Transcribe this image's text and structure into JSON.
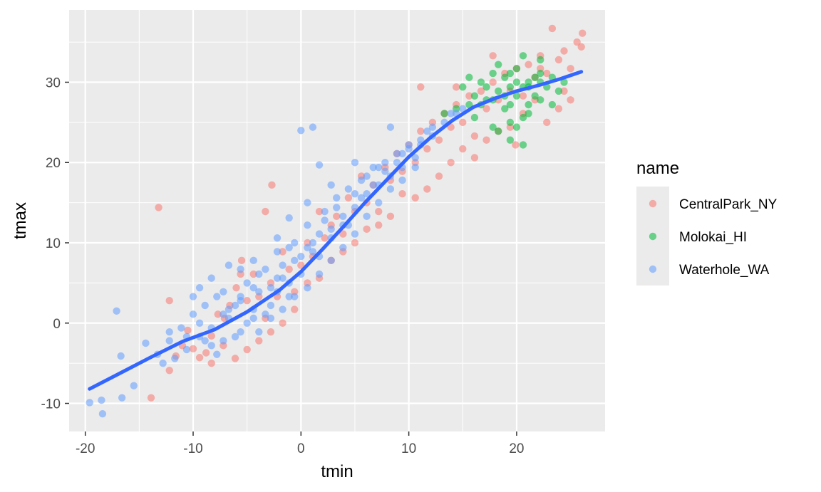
{
  "chart_data": {
    "type": "scatter",
    "title": "",
    "xlabel": "tmin",
    "ylabel": "tmax",
    "xlim": [
      -21.5,
      28.2
    ],
    "ylim": [
      -13.5,
      39
    ],
    "x_ticks": [
      -20,
      -10,
      0,
      10,
      20
    ],
    "y_ticks": [
      -10,
      0,
      10,
      20,
      30
    ],
    "grid": true,
    "legend": {
      "title": "name",
      "position": "right"
    },
    "series": [
      {
        "name": "CentralPark_NY",
        "color": "#F8766D",
        "points": [
          [
            -13.2,
            14.4
          ],
          [
            -12.2,
            2.8
          ],
          [
            -13.9,
            -9.3
          ],
          [
            -12.2,
            -5.9
          ],
          [
            -11.6,
            -4.1
          ],
          [
            -11.0,
            -2.8
          ],
          [
            -10.5,
            -0.9
          ],
          [
            -10.0,
            -3.2
          ],
          [
            -9.4,
            -4.3
          ],
          [
            -8.8,
            -3.7
          ],
          [
            -8.3,
            -1.6
          ],
          [
            -7.7,
            1.1
          ],
          [
            -7.1,
            0.6
          ],
          [
            -6.6,
            2.2
          ],
          [
            -6.0,
            4.4
          ],
          [
            -5.5,
            7.8
          ],
          [
            -5.0,
            2.8
          ],
          [
            -4.4,
            6.1
          ],
          [
            -3.9,
            3.3
          ],
          [
            -3.3,
            0.6
          ],
          [
            -2.8,
            5.0
          ],
          [
            -2.2,
            3.3
          ],
          [
            -1.7,
            8.9
          ],
          [
            -1.1,
            6.7
          ],
          [
            -0.6,
            3.9
          ],
          [
            0.0,
            7.2
          ],
          [
            0.6,
            10.0
          ],
          [
            1.1,
            8.3
          ],
          [
            1.7,
            13.9
          ],
          [
            2.2,
            10.6
          ],
          [
            2.8,
            12.2
          ],
          [
            3.3,
            13.3
          ],
          [
            3.9,
            11.1
          ],
          [
            4.4,
            15.6
          ],
          [
            5.0,
            13.9
          ],
          [
            5.6,
            18.3
          ],
          [
            6.1,
            15.0
          ],
          [
            6.7,
            17.2
          ],
          [
            7.2,
            13.9
          ],
          [
            7.8,
            19.4
          ],
          [
            8.3,
            17.8
          ],
          [
            8.9,
            21.1
          ],
          [
            9.4,
            18.9
          ],
          [
            10.0,
            22.2
          ],
          [
            10.6,
            20.0
          ],
          [
            11.1,
            23.9
          ],
          [
            11.7,
            21.7
          ],
          [
            12.2,
            25.0
          ],
          [
            12.8,
            22.8
          ],
          [
            13.3,
            26.1
          ],
          [
            13.9,
            24.4
          ],
          [
            14.4,
            27.2
          ],
          [
            15.0,
            25.0
          ],
          [
            15.6,
            28.3
          ],
          [
            16.1,
            23.3
          ],
          [
            16.7,
            28.9
          ],
          [
            17.2,
            26.7
          ],
          [
            17.8,
            30.0
          ],
          [
            18.3,
            27.8
          ],
          [
            18.9,
            31.1
          ],
          [
            19.4,
            28.9
          ],
          [
            20.0,
            31.7
          ],
          [
            20.6,
            28.3
          ],
          [
            21.1,
            32.2
          ],
          [
            21.7,
            30.6
          ],
          [
            22.2,
            33.3
          ],
          [
            22.8,
            31.1
          ],
          [
            23.3,
            36.7
          ],
          [
            23.9,
            32.8
          ],
          [
            24.4,
            33.9
          ],
          [
            25.0,
            31.7
          ],
          [
            25.6,
            35.0
          ],
          [
            26.0,
            34.4
          ],
          [
            26.1,
            36.1
          ],
          [
            25.0,
            27.8
          ],
          [
            23.9,
            26.7
          ],
          [
            22.8,
            25.0
          ],
          [
            21.7,
            27.8
          ],
          [
            20.6,
            26.1
          ],
          [
            19.4,
            24.4
          ],
          [
            18.3,
            23.9
          ],
          [
            17.2,
            22.8
          ],
          [
            16.1,
            20.6
          ],
          [
            15.0,
            21.7
          ],
          [
            13.9,
            20.0
          ],
          [
            12.8,
            18.3
          ],
          [
            11.7,
            16.7
          ],
          [
            10.6,
            15.6
          ],
          [
            9.4,
            16.1
          ],
          [
            8.3,
            13.3
          ],
          [
            7.2,
            12.2
          ],
          [
            6.1,
            11.7
          ],
          [
            5.0,
            10.0
          ],
          [
            3.9,
            8.9
          ],
          [
            2.8,
            7.8
          ],
          [
            1.7,
            5.6
          ],
          [
            0.6,
            5.0
          ],
          [
            -0.6,
            1.7
          ],
          [
            -1.7,
            0.0
          ],
          [
            -2.8,
            -1.1
          ],
          [
            -3.9,
            -2.2
          ],
          [
            -5.0,
            -3.3
          ],
          [
            -6.1,
            -4.4
          ],
          [
            -7.2,
            -2.8
          ],
          [
            -8.3,
            -5.0
          ],
          [
            -3.3,
            13.9
          ],
          [
            -2.7,
            17.2
          ],
          [
            -5.6,
            6.1
          ],
          [
            11.1,
            29.4
          ],
          [
            14.4,
            29.4
          ],
          [
            17.8,
            33.3
          ],
          [
            22.2,
            31.7
          ],
          [
            24.4,
            28.9
          ],
          [
            19.9,
            22.2
          ]
        ]
      },
      {
        "name": "Molokai_HI",
        "color": "#00BA38",
        "points": [
          [
            14.4,
            26.7
          ],
          [
            15.0,
            29.4
          ],
          [
            15.6,
            27.2
          ],
          [
            16.1,
            28.3
          ],
          [
            16.7,
            30.0
          ],
          [
            17.2,
            27.8
          ],
          [
            17.8,
            31.1
          ],
          [
            18.3,
            28.9
          ],
          [
            18.9,
            30.6
          ],
          [
            19.4,
            27.2
          ],
          [
            20.0,
            31.7
          ],
          [
            20.6,
            29.4
          ],
          [
            21.1,
            30.0
          ],
          [
            21.7,
            28.3
          ],
          [
            22.2,
            31.1
          ],
          [
            22.8,
            29.4
          ],
          [
            23.3,
            30.6
          ],
          [
            23.9,
            28.9
          ],
          [
            24.4,
            30.0
          ],
          [
            18.3,
            32.2
          ],
          [
            19.4,
            29.4
          ],
          [
            20.0,
            28.3
          ],
          [
            21.1,
            27.2
          ],
          [
            22.2,
            27.8
          ],
          [
            17.2,
            29.4
          ],
          [
            16.7,
            27.2
          ],
          [
            18.9,
            26.7
          ],
          [
            20.6,
            25.6
          ],
          [
            19.4,
            25.0
          ],
          [
            21.1,
            26.1
          ],
          [
            18.3,
            23.9
          ],
          [
            20.0,
            24.4
          ],
          [
            19.4,
            22.8
          ],
          [
            20.6,
            22.2
          ],
          [
            17.8,
            24.4
          ],
          [
            16.1,
            25.6
          ],
          [
            13.3,
            26.1
          ],
          [
            15.6,
            30.6
          ],
          [
            20.6,
            33.3
          ],
          [
            22.2,
            32.8
          ],
          [
            23.3,
            27.2
          ],
          [
            21.7,
            30.6
          ],
          [
            19.4,
            31.1
          ],
          [
            18.9,
            28.3
          ],
          [
            17.8,
            27.8
          ],
          [
            20.0,
            30.0
          ],
          [
            21.1,
            29.4
          ],
          [
            22.2,
            30.0
          ]
        ]
      },
      {
        "name": "Waterhole_WA",
        "color": "#619CFF",
        "points": [
          [
            -19.6,
            -9.9
          ],
          [
            -18.5,
            -9.6
          ],
          [
            -18.4,
            -11.3
          ],
          [
            -17.1,
            1.5
          ],
          [
            -16.7,
            -4.1
          ],
          [
            -16.6,
            -9.3
          ],
          [
            -15.5,
            -7.8
          ],
          [
            -14.4,
            -2.5
          ],
          [
            -13.3,
            -3.9
          ],
          [
            -12.8,
            -5.0
          ],
          [
            -12.2,
            -2.2
          ],
          [
            -11.7,
            -4.4
          ],
          [
            -11.1,
            -0.6
          ],
          [
            -10.6,
            -1.7
          ],
          [
            -10.0,
            1.1
          ],
          [
            -9.4,
            0.0
          ],
          [
            -8.9,
            2.2
          ],
          [
            -8.3,
            -2.8
          ],
          [
            -7.8,
            3.3
          ],
          [
            -7.2,
            1.1
          ],
          [
            -6.7,
            0.6
          ],
          [
            -6.1,
            -1.7
          ],
          [
            -5.6,
            2.8
          ],
          [
            -5.0,
            5.0
          ],
          [
            -4.4,
            1.7
          ],
          [
            -3.9,
            3.9
          ],
          [
            -3.3,
            6.7
          ],
          [
            -2.8,
            2.2
          ],
          [
            -2.2,
            5.6
          ],
          [
            -1.7,
            7.2
          ],
          [
            -1.1,
            3.3
          ],
          [
            -0.6,
            10.0
          ],
          [
            0.0,
            6.1
          ],
          [
            0.6,
            12.2
          ],
          [
            1.1,
            8.9
          ],
          [
            1.7,
            11.1
          ],
          [
            2.2,
            13.9
          ],
          [
            2.8,
            11.7
          ],
          [
            3.3,
            15.6
          ],
          [
            3.9,
            13.3
          ],
          [
            4.4,
            16.7
          ],
          [
            5.0,
            14.4
          ],
          [
            5.6,
            17.8
          ],
          [
            6.1,
            16.1
          ],
          [
            6.7,
            19.4
          ],
          [
            7.2,
            17.2
          ],
          [
            7.8,
            20.0
          ],
          [
            8.3,
            18.3
          ],
          [
            8.9,
            21.1
          ],
          [
            9.4,
            19.4
          ],
          [
            10.0,
            22.2
          ],
          [
            10.6,
            20.6
          ],
          [
            11.1,
            22.8
          ],
          [
            11.7,
            23.9
          ],
          [
            12.2,
            24.4
          ],
          [
            13.3,
            25.0
          ],
          [
            14.4,
            26.1
          ],
          [
            15.0,
            26.7
          ],
          [
            0.0,
            24.0
          ],
          [
            1.1,
            24.4
          ],
          [
            1.7,
            19.7
          ],
          [
            -6.7,
            7.2
          ],
          [
            -5.6,
            6.7
          ],
          [
            -4.4,
            7.8
          ],
          [
            -2.2,
            10.6
          ],
          [
            -1.1,
            13.1
          ],
          [
            0.6,
            15.0
          ],
          [
            2.8,
            17.2
          ],
          [
            5.0,
            20.0
          ],
          [
            8.3,
            24.4
          ],
          [
            -9.4,
            4.4
          ],
          [
            -8.3,
            5.6
          ],
          [
            -7.2,
            3.9
          ],
          [
            -6.1,
            2.2
          ],
          [
            -5.0,
            0.0
          ],
          [
            -3.9,
            -1.1
          ],
          [
            -2.8,
            0.6
          ],
          [
            -1.7,
            1.7
          ],
          [
            -0.6,
            3.3
          ],
          [
            0.6,
            4.4
          ],
          [
            1.7,
            6.1
          ],
          [
            2.8,
            7.8
          ],
          [
            3.9,
            9.4
          ],
          [
            5.0,
            11.1
          ],
          [
            6.1,
            13.3
          ],
          [
            7.2,
            15.0
          ],
          [
            8.3,
            16.7
          ],
          [
            9.4,
            17.8
          ],
          [
            -10.6,
            -3.3
          ],
          [
            -9.4,
            -1.7
          ],
          [
            -8.3,
            -0.6
          ],
          [
            -7.2,
            -2.2
          ],
          [
            -5.6,
            -1.1
          ],
          [
            -4.4,
            0.6
          ],
          [
            -3.3,
            1.1
          ],
          [
            -2.2,
            3.9
          ],
          [
            -1.1,
            5.0
          ],
          [
            0.0,
            8.3
          ],
          [
            1.1,
            10.0
          ],
          [
            2.2,
            12.8
          ],
          [
            3.3,
            14.4
          ],
          [
            4.4,
            12.2
          ],
          [
            5.6,
            15.6
          ],
          [
            6.7,
            17.2
          ],
          [
            7.8,
            18.9
          ],
          [
            8.9,
            20.0
          ],
          [
            10.0,
            21.7
          ],
          [
            11.1,
            22.2
          ],
          [
            12.2,
            23.3
          ],
          [
            13.9,
            26.1
          ],
          [
            -12.2,
            -1.1
          ],
          [
            -10.0,
            3.3
          ],
          [
            -8.9,
            -2.2
          ],
          [
            -7.8,
            -3.9
          ],
          [
            -6.7,
            1.7
          ],
          [
            -3.9,
            6.1
          ],
          [
            -2.8,
            4.4
          ],
          [
            -1.7,
            5.6
          ],
          [
            -0.6,
            7.8
          ],
          [
            0.6,
            9.4
          ],
          [
            1.7,
            8.3
          ],
          [
            2.8,
            10.6
          ],
          [
            3.9,
            12.2
          ],
          [
            5.0,
            16.1
          ],
          [
            6.1,
            18.3
          ],
          [
            7.2,
            19.4
          ],
          [
            9.4,
            21.1
          ],
          [
            10.6,
            19.4
          ],
          [
            -1.1,
            9.4
          ],
          [
            -2.2,
            8.9
          ],
          [
            -4.4,
            4.4
          ],
          [
            -5.6,
            3.3
          ]
        ]
      }
    ],
    "smooth": {
      "color": "#3366FF",
      "points": [
        [
          -19.6,
          -8.2
        ],
        [
          -17.0,
          -6.4
        ],
        [
          -14.0,
          -4.3
        ],
        [
          -11.0,
          -2.3
        ],
        [
          -8.0,
          -0.8
        ],
        [
          -5.0,
          1.4
        ],
        [
          -2.0,
          4.1
        ],
        [
          0.0,
          6.4
        ],
        [
          2.0,
          9.2
        ],
        [
          4.0,
          12.1
        ],
        [
          6.0,
          15.1
        ],
        [
          8.0,
          17.9
        ],
        [
          10.0,
          20.7
        ],
        [
          12.0,
          23.1
        ],
        [
          14.0,
          25.2
        ],
        [
          16.0,
          26.9
        ],
        [
          18.0,
          28.0
        ],
        [
          20.0,
          28.9
        ],
        [
          22.0,
          29.6
        ],
        [
          24.0,
          30.4
        ],
        [
          26.0,
          31.3
        ]
      ]
    }
  }
}
